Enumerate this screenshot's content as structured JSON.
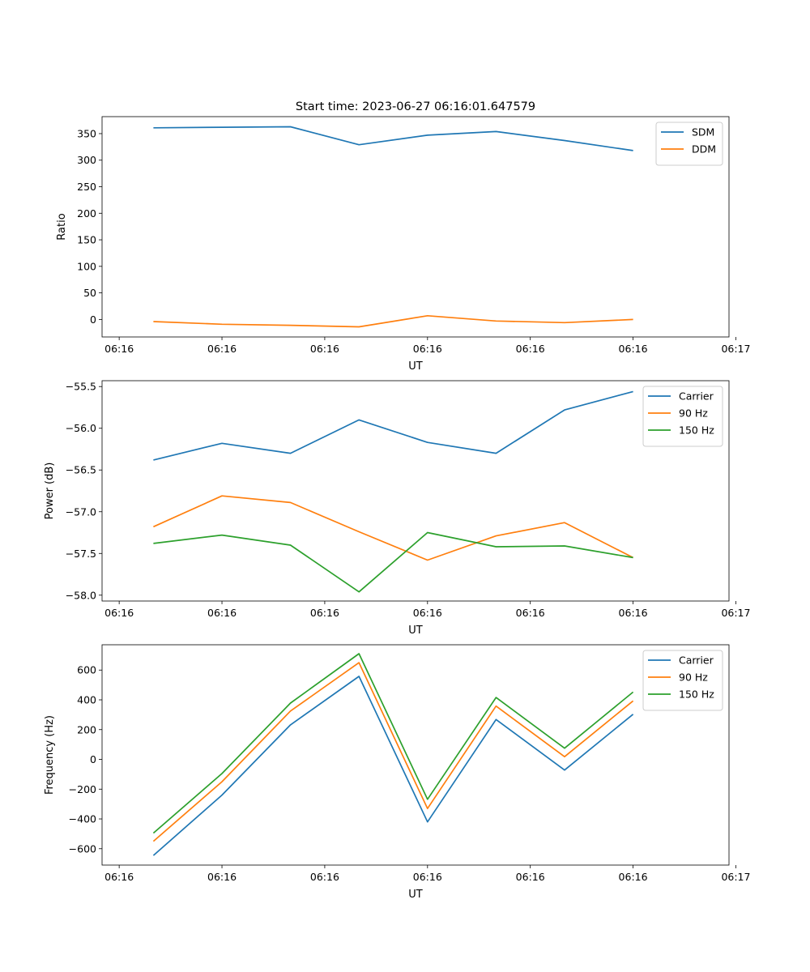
{
  "figure": {
    "title": "Start time: 2023-06-27 06:16:01.647579"
  },
  "chart_data": [
    {
      "type": "line",
      "title": "Start time: 2023-06-27 06:16:01.647579",
      "xlabel": "UT",
      "ylabel": "Ratio",
      "x": [
        1,
        2,
        3,
        4,
        5,
        6,
        7,
        8
      ],
      "xlim": [
        0.25,
        9.4
      ],
      "x_ticks": [
        {
          "v": 0.5,
          "label": "06:16"
        },
        {
          "v": 2,
          "label": "06:16"
        },
        {
          "v": 3.5,
          "label": "06:16"
        },
        {
          "v": 5,
          "label": "06:16"
        },
        {
          "v": 6.5,
          "label": "06:16"
        },
        {
          "v": 8,
          "label": "06:16"
        },
        {
          "v": 9.5,
          "label": "06:17"
        }
      ],
      "ylim": [
        -33,
        382
      ],
      "y_ticks": [
        0,
        50,
        100,
        150,
        200,
        250,
        300,
        350
      ],
      "legend_position": "top-right",
      "series": [
        {
          "name": "SDM",
          "color": "#1f77b4",
          "values": [
            361,
            362,
            363,
            329,
            347,
            354,
            337,
            318
          ]
        },
        {
          "name": "DDM",
          "color": "#ff7f0e",
          "values": [
            -4,
            -9,
            -11,
            -14,
            7,
            -3,
            -6,
            0
          ]
        }
      ]
    },
    {
      "type": "line",
      "xlabel": "UT",
      "ylabel": "Power (dB)",
      "x": [
        1,
        2,
        3,
        4,
        5,
        6,
        7,
        8
      ],
      "xlim": [
        0.25,
        9.4
      ],
      "x_ticks": [
        {
          "v": 0.5,
          "label": "06:16"
        },
        {
          "v": 2,
          "label": "06:16"
        },
        {
          "v": 3.5,
          "label": "06:16"
        },
        {
          "v": 5,
          "label": "06:16"
        },
        {
          "v": 6.5,
          "label": "06:16"
        },
        {
          "v": 8,
          "label": "06:16"
        },
        {
          "v": 9.5,
          "label": "06:17"
        }
      ],
      "ylim": [
        -58.07,
        -55.43
      ],
      "y_ticks": [
        -58.0,
        -57.5,
        -57.0,
        -56.5,
        -56.0,
        -55.5
      ],
      "y_tick_labels": [
        "−58.0",
        "−57.5",
        "−57.0",
        "−56.5",
        "−56.0",
        "−55.5"
      ],
      "legend_position": "top-right",
      "series": [
        {
          "name": "Carrier",
          "color": "#1f77b4",
          "values": [
            -56.38,
            -56.18,
            -56.3,
            -55.9,
            -56.17,
            -56.3,
            -55.78,
            -55.56
          ]
        },
        {
          "name": "90 Hz",
          "color": "#ff7f0e",
          "values": [
            -57.18,
            -56.81,
            -56.89,
            -57.24,
            -57.58,
            -57.29,
            -57.13,
            -57.55
          ]
        },
        {
          "name": "150 Hz",
          "color": "#2ca02c",
          "values": [
            -57.38,
            -57.28,
            -57.4,
            -57.96,
            -57.25,
            -57.42,
            -57.41,
            -57.55
          ]
        }
      ]
    },
    {
      "type": "line",
      "xlabel": "UT",
      "ylabel": "Frequency (Hz)",
      "x": [
        1,
        2,
        3,
        4,
        5,
        6,
        7,
        8
      ],
      "xlim": [
        0.25,
        9.4
      ],
      "x_ticks": [
        {
          "v": 0.5,
          "label": "06:16"
        },
        {
          "v": 2,
          "label": "06:16"
        },
        {
          "v": 3.5,
          "label": "06:16"
        },
        {
          "v": 5,
          "label": "06:16"
        },
        {
          "v": 6.5,
          "label": "06:16"
        },
        {
          "v": 8,
          "label": "06:16"
        },
        {
          "v": 9.5,
          "label": "06:17"
        }
      ],
      "ylim": [
        -710,
        770
      ],
      "y_ticks": [
        -600,
        -400,
        -200,
        0,
        200,
        400,
        600
      ],
      "y_tick_labels": [
        "−600",
        "−400",
        "−200",
        "0",
        "200",
        "400",
        "600"
      ],
      "legend_position": "top-right",
      "series": [
        {
          "name": "Carrier",
          "color": "#1f77b4",
          "values": [
            -645,
            -240,
            232,
            558,
            -420,
            268,
            -72,
            303
          ]
        },
        {
          "name": "90 Hz",
          "color": "#ff7f0e",
          "values": [
            -550,
            -150,
            325,
            650,
            -330,
            358,
            18,
            393
          ]
        },
        {
          "name": "150 Hz",
          "color": "#2ca02c",
          "values": [
            -495,
            -95,
            378,
            710,
            -268,
            416,
            75,
            452
          ]
        }
      ]
    }
  ]
}
